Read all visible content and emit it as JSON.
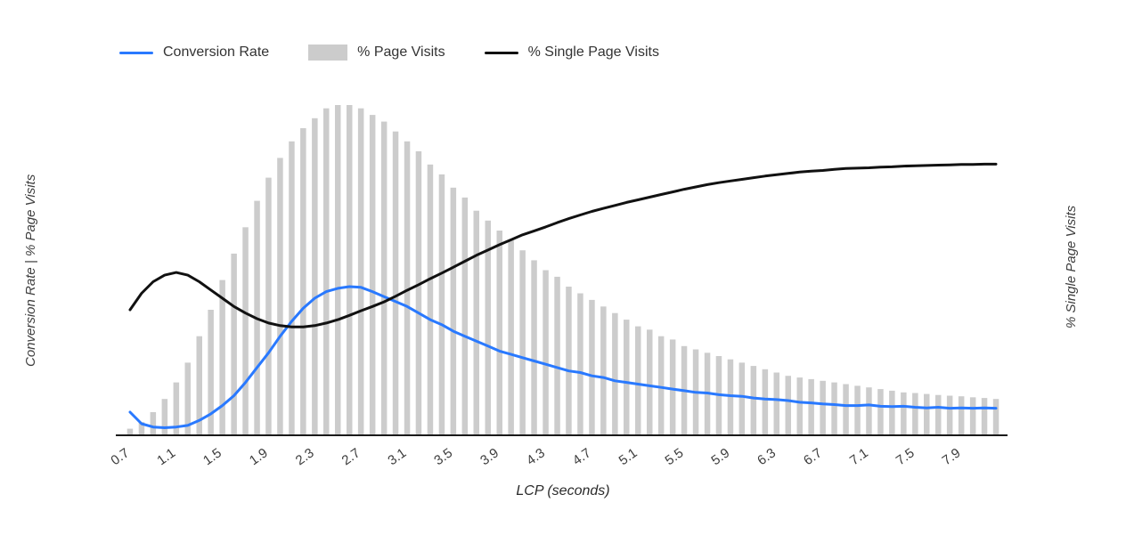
{
  "page": {
    "background": "#ffffff"
  },
  "legend": {
    "items": [
      {
        "label": "Conversion Rate",
        "type": "line",
        "color": "#2979ff"
      },
      {
        "label": "% Page Visits",
        "type": "bar",
        "color": "#cccccc"
      },
      {
        "label": "% Single Page Visits",
        "type": "line",
        "color": "#111111"
      }
    ]
  },
  "axes": {
    "x_title": "LCP (seconds)",
    "y_left_title": "Conversion Rate | % Page Visits",
    "y_right_title": "% Single Page Visits",
    "x_tick_labels": [
      "0.7",
      "1.1",
      "1.5",
      "1.9",
      "2.3",
      "2.7",
      "3.1",
      "3.5",
      "3.9",
      "4.3",
      "4.7",
      "5.1",
      "5.5",
      "5.9",
      "6.3",
      "6.7",
      "7.1",
      "7.5",
      "7.9"
    ]
  },
  "chart_data": {
    "type": "combo",
    "note": "Neither vertical axis shows numeric tick labels; series values are relative heights in percent of the plot height, estimated from pixels.",
    "title": "",
    "xlabel": "LCP (seconds)",
    "ylabel_left": "Conversion Rate | % Page Visits",
    "ylabel_right": "% Single Page Visits",
    "xlim": [
      0.6,
      8.3
    ],
    "ylim_relative": [
      0,
      100
    ],
    "grid": false,
    "legend_position": "top",
    "x_ticks": [
      0.7,
      1.1,
      1.5,
      1.9,
      2.3,
      2.7,
      3.1,
      3.5,
      3.9,
      4.3,
      4.7,
      5.1,
      5.5,
      5.9,
      6.3,
      6.7,
      7.1,
      7.5,
      7.9
    ],
    "x": [
      0.7,
      0.8,
      0.9,
      1.0,
      1.1,
      1.2,
      1.3,
      1.4,
      1.5,
      1.6,
      1.7,
      1.8,
      1.9,
      2.0,
      2.1,
      2.2,
      2.3,
      2.4,
      2.5,
      2.6,
      2.7,
      2.8,
      2.9,
      3.0,
      3.1,
      3.2,
      3.3,
      3.4,
      3.5,
      3.6,
      3.7,
      3.8,
      3.9,
      4.0,
      4.1,
      4.2,
      4.3,
      4.4,
      4.5,
      4.6,
      4.7,
      4.8,
      4.9,
      5.0,
      5.1,
      5.2,
      5.3,
      5.4,
      5.5,
      5.6,
      5.7,
      5.8,
      5.9,
      6.0,
      6.1,
      6.2,
      6.3,
      6.4,
      6.5,
      6.6,
      6.7,
      6.8,
      6.9,
      7.0,
      7.1,
      7.2,
      7.3,
      7.4,
      7.5,
      7.6,
      7.7,
      7.8,
      7.9,
      8.0,
      8.1,
      8.2
    ],
    "series": [
      {
        "name": "% Page Visits",
        "type": "bar",
        "axis": "left",
        "color": "#cccccc",
        "values": [
          2,
          4,
          7,
          11,
          16,
          22,
          30,
          38,
          47,
          55,
          63,
          71,
          78,
          84,
          89,
          93,
          96,
          99,
          100,
          100,
          99,
          97,
          95,
          92,
          89,
          86,
          82,
          79,
          75,
          72,
          68,
          65,
          62,
          59,
          56,
          53,
          50,
          48,
          45,
          43,
          41,
          39,
          37,
          35,
          33,
          32,
          30,
          29,
          27,
          26,
          25,
          24,
          23,
          22,
          21,
          20,
          19,
          18,
          17.5,
          17,
          16.5,
          16,
          15.5,
          15,
          14.5,
          14,
          13.5,
          13,
          12.8,
          12.5,
          12.2,
          12,
          11.8,
          11.5,
          11.3,
          11
        ]
      },
      {
        "name": "Conversion Rate",
        "type": "line",
        "axis": "left",
        "color": "#2979ff",
        "values": [
          7,
          3.5,
          2.5,
          2.3,
          2.5,
          3,
          4.5,
          6.5,
          9,
          12,
          16,
          20.5,
          25,
          30,
          34.5,
          38.5,
          41.5,
          43.5,
          44.5,
          45,
          44.8,
          43.5,
          42,
          40.5,
          39,
          37,
          35,
          33.5,
          31.5,
          30,
          28.5,
          27,
          25.5,
          24.5,
          23.5,
          22.5,
          21.5,
          20.5,
          19.5,
          19,
          18,
          17.5,
          16.5,
          16,
          15.5,
          15,
          14.5,
          14,
          13.5,
          13,
          12.8,
          12.3,
          12,
          11.8,
          11.3,
          11,
          10.8,
          10.5,
          10,
          9.8,
          9.5,
          9.3,
          9,
          9,
          9.2,
          8.8,
          8.7,
          8.8,
          8.5,
          8.3,
          8.5,
          8.2,
          8.3,
          8.2,
          8.3,
          8.2
        ]
      },
      {
        "name": "% Single Page Visits",
        "type": "line",
        "axis": "right",
        "color": "#111111",
        "values": [
          38,
          43,
          46.5,
          48.5,
          49.3,
          48.5,
          46.5,
          44,
          41.5,
          39,
          37,
          35.3,
          34,
          33.2,
          32.8,
          32.8,
          33.2,
          34,
          35,
          36.3,
          37.7,
          39,
          40.4,
          42.1,
          43.9,
          45.6,
          47.4,
          49.1,
          50.9,
          52.7,
          54.5,
          56.1,
          57.7,
          59.2,
          60.7,
          61.9,
          63.1,
          64.4,
          65.6,
          66.7,
          67.8,
          68.7,
          69.6,
          70.5,
          71.3,
          72.1,
          72.9,
          73.7,
          74.5,
          75.2,
          75.9,
          76.5,
          77,
          77.5,
          78,
          78.5,
          78.9,
          79.3,
          79.7,
          80,
          80.2,
          80.5,
          80.8,
          80.9,
          81,
          81.2,
          81.3,
          81.5,
          81.6,
          81.7,
          81.8,
          81.9,
          82,
          82,
          82.1,
          82.1
        ]
      }
    ]
  }
}
